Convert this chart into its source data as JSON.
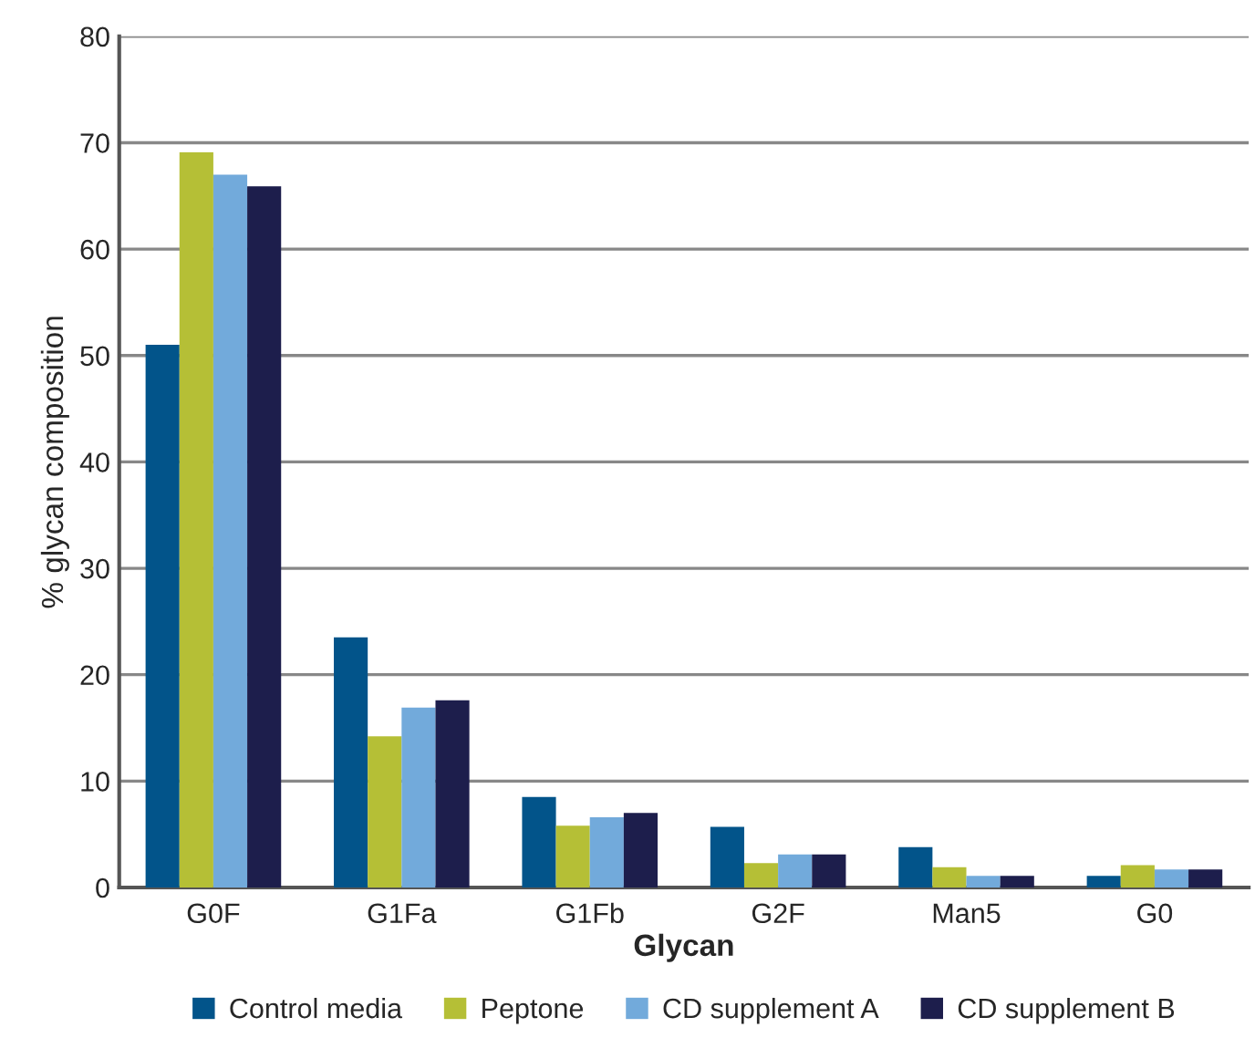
{
  "chart_data": {
    "type": "bar",
    "xlabel": "Glycan",
    "ylabel": "% glycan composition",
    "categories": [
      "G0F",
      "G1Fa",
      "G1Fb",
      "G2F",
      "Man5",
      "G0"
    ],
    "series": [
      {
        "name": "Control media",
        "color": "#02548a",
        "values": [
          51,
          23.5,
          8.5,
          5.7,
          3.8,
          1.1
        ]
      },
      {
        "name": "Peptone",
        "color": "#b5bf36",
        "values": [
          69.1,
          14.2,
          5.8,
          2.3,
          1.9,
          2.1
        ]
      },
      {
        "name": "CD supplement A",
        "color": "#72aadb",
        "values": [
          67,
          16.9,
          6.6,
          3.1,
          1.1,
          1.7
        ]
      },
      {
        "name": "CD supplement B",
        "color": "#1d1e4c",
        "values": [
          65.9,
          17.6,
          7.0,
          3.1,
          1.1,
          1.7
        ]
      }
    ],
    "ylim": [
      0,
      80
    ],
    "yticks": [
      0,
      10,
      20,
      30,
      40,
      50,
      60,
      70,
      80
    ],
    "grid": "y",
    "legend": "bottom"
  }
}
